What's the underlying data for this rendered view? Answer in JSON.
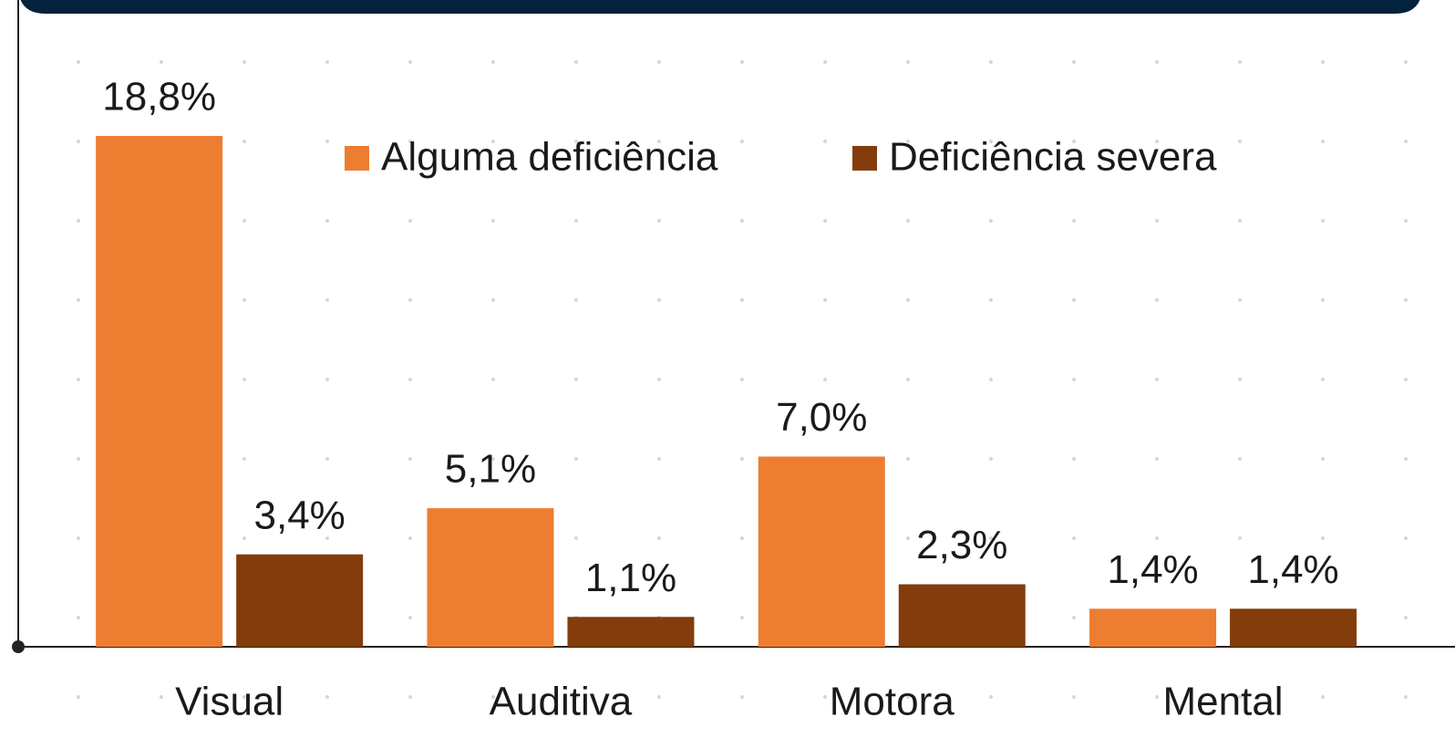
{
  "chart_data": {
    "type": "bar",
    "categories": [
      "Visual",
      "Auditiva",
      "Motora",
      "Mental"
    ],
    "series": [
      {
        "name": "Alguma deficiência",
        "color": "#ed7d31",
        "values": [
          18.8,
          5.1,
          7.0,
          1.4
        ],
        "value_labels": [
          "18,8%",
          "5,1%",
          "7,0%",
          "1,4%"
        ]
      },
      {
        "name": "Deficiência severa",
        "color": "#843c0c",
        "values": [
          3.4,
          1.1,
          2.3,
          1.4
        ],
        "value_labels": [
          "3,4%",
          "1,1%",
          "2,3%",
          "1,4%"
        ]
      }
    ],
    "ylim": [
      0,
      20
    ],
    "legend": "top"
  }
}
